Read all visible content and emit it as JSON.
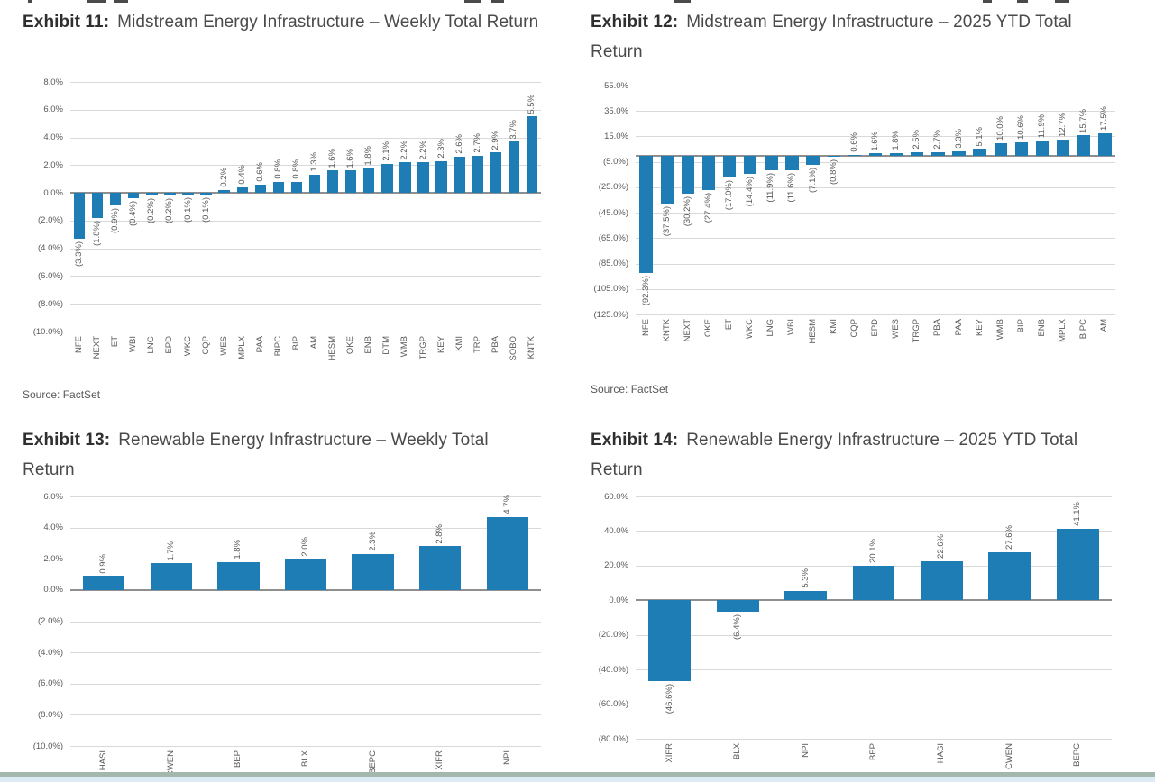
{
  "page": {
    "background": "#ffffff",
    "bar_color": "#1e7db5",
    "gridline_color": "#d9d9d9",
    "axis_line_color": "#8f8f8f",
    "footer_strip_green": "#a4b7ad",
    "footer_strip_blue": "#ddebf5"
  },
  "chart_data": [
    {
      "type": "bar",
      "exhibit": "Exhibit 11:",
      "title": "Midstream Energy Infrastructure – Weekly Total Return",
      "source": "Source: FactSet",
      "categories": [
        "NFE",
        "NEXT",
        "ET",
        "WBI",
        "LNG",
        "EPD",
        "WKC",
        "CQP",
        "WES",
        "MPLX",
        "PAA",
        "BIPC",
        "BIP",
        "AM",
        "HESM",
        "OKE",
        "ENB",
        "DTM",
        "WMB",
        "TRGP",
        "KEY",
        "KMI",
        "TRP",
        "PBA",
        "SOBO",
        "KNTK"
      ],
      "values": [
        -3.3,
        -1.8,
        -0.9,
        -0.4,
        -0.2,
        -0.2,
        -0.1,
        -0.1,
        0.2,
        0.4,
        0.6,
        0.8,
        0.8,
        1.3,
        1.6,
        1.6,
        1.8,
        2.1,
        2.2,
        2.2,
        2.3,
        2.6,
        2.7,
        2.9,
        3.7,
        5.5
      ],
      "labels": [
        "(3.3%)",
        "(1.8%)",
        "(0.9%)",
        "(0.4%)",
        "(0.2%)",
        "(0.2%)",
        "(0.1%)",
        "(0.1%)",
        "0.2%",
        "0.4%",
        "0.6%",
        "0.8%",
        "0.8%",
        "1.3%",
        "1.6%",
        "1.6%",
        "1.8%",
        "2.1%",
        "2.2%",
        "2.2%",
        "2.3%",
        "2.6%",
        "2.7%",
        "2.9%",
        "3.7%",
        "5.5%"
      ],
      "ytick_values": [
        8,
        6,
        4,
        2,
        0,
        -2,
        -4,
        -6,
        -8,
        -10
      ],
      "ytick_labels": [
        "8.0%",
        "6.0%",
        "4.0%",
        "2.0%",
        "0.0%",
        "(2.0%)",
        "(4.0%)",
        "(6.0%)",
        "(8.0%)",
        "(10.0%)"
      ],
      "ylim": [
        -10,
        8
      ],
      "xlabel": "",
      "ylabel": "",
      "grid": true,
      "legend": false,
      "bar_color": "#1e7db5"
    },
    {
      "type": "bar",
      "exhibit": "Exhibit 12:",
      "title": "Midstream Energy Infrastructure – 2025 YTD Total Return",
      "source": "Source: FactSet",
      "categories": [
        "NFE",
        "KNTK",
        "NEXT",
        "OKE",
        "ET",
        "WKC",
        "LNG",
        "WBI",
        "HESM",
        "KMI",
        "CQP",
        "EPD",
        "WES",
        "TRGP",
        "PBA",
        "PAA",
        "KEY",
        "WMB",
        "BIP",
        "ENB",
        "MPLX",
        "BIPC",
        "AM"
      ],
      "values": [
        -92.3,
        -37.5,
        -30.2,
        -27.4,
        -17.0,
        -14.4,
        -11.9,
        -11.6,
        -7.1,
        -0.8,
        0.6,
        1.6,
        1.8,
        2.5,
        2.7,
        3.3,
        5.1,
        10.0,
        10.6,
        11.9,
        12.7,
        15.7,
        17.5
      ],
      "labels": [
        "(92.3%)",
        "(37.5%)",
        "(30.2%)",
        "(27.4%)",
        "(17.0%)",
        "(14.4%)",
        "(11.9%)",
        "(11.6%)",
        "(7.1%)",
        "(0.8%)",
        "0.6%",
        "1.6%",
        "1.8%",
        "2.5%",
        "2.7%",
        "3.3%",
        "5.1%",
        "10.0%",
        "10.6%",
        "11.9%",
        "12.7%",
        "15.7%",
        "17.5%"
      ],
      "ytick_values": [
        55,
        35,
        15,
        -5,
        -25,
        -45,
        -65,
        -85,
        -105,
        -125
      ],
      "ytick_labels": [
        "55.0%",
        "35.0%",
        "15.0%",
        "(5.0%)",
        "(25.0%)",
        "(45.0%)",
        "(65.0%)",
        "(85.0%)",
        "(105.0%)",
        "(125.0%)"
      ],
      "ylim": [
        -125,
        55
      ],
      "xlabel": "",
      "ylabel": "",
      "grid": true,
      "legend": false,
      "bar_color": "#1e7db5"
    },
    {
      "type": "bar",
      "exhibit": "Exhibit 13:",
      "title": "Renewable Energy Infrastructure – Weekly Total Return",
      "categories": [
        "HASI",
        "CWEN",
        "BEP",
        "BLX",
        "BEPC",
        "XIFR",
        "NPI"
      ],
      "values": [
        0.9,
        1.7,
        1.8,
        2.0,
        2.3,
        2.8,
        4.7
      ],
      "labels": [
        "0.9%",
        "1.7%",
        "1.8%",
        "2.0%",
        "2.3%",
        "2.8%",
        "4.7%"
      ],
      "ytick_values": [
        6,
        4,
        2,
        0,
        -2,
        -4,
        -6,
        -8,
        -10
      ],
      "ytick_labels": [
        "6.0%",
        "4.0%",
        "2.0%",
        "0.0%",
        "(2.0%)",
        "(4.0%)",
        "(6.0%)",
        "(8.0%)",
        "(10.0%)"
      ],
      "ylim": [
        -10,
        6
      ],
      "xlabel": "",
      "ylabel": "",
      "grid": true,
      "legend": false,
      "bar_color": "#1e7db5"
    },
    {
      "type": "bar",
      "exhibit": "Exhibit 14:",
      "title": "Renewable Energy Infrastructure – 2025 YTD Total Return",
      "categories": [
        "XIFR",
        "BLX",
        "NPI",
        "BEP",
        "HASI",
        "CWEN",
        "BEPC"
      ],
      "values": [
        -46.6,
        -6.4,
        5.3,
        20.1,
        22.6,
        27.6,
        41.1
      ],
      "labels": [
        "(46.6%)",
        "(6.4%)",
        "5.3%",
        "20.1%",
        "22.6%",
        "27.6%",
        "41.1%"
      ],
      "ytick_values": [
        60,
        40,
        20,
        0,
        -20,
        -40,
        -60,
        -80
      ],
      "ytick_labels": [
        "60.0%",
        "40.0%",
        "20.0%",
        "0.0%",
        "(20.0%)",
        "(40.0%)",
        "(60.0%)",
        "(80.0%)"
      ],
      "ylim": [
        -80,
        60
      ],
      "xlabel": "",
      "ylabel": "",
      "grid": true,
      "legend": false,
      "bar_color": "#1e7db5"
    }
  ]
}
